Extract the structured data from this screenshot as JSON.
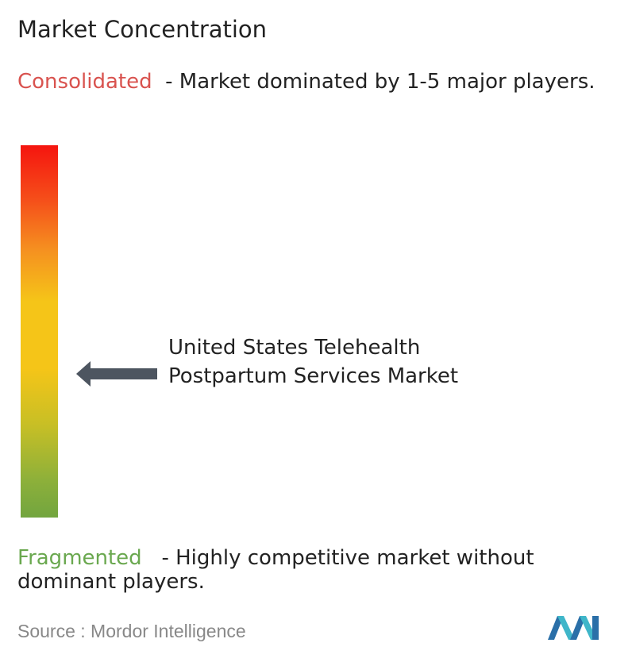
{
  "title": "Market Concentration",
  "consolidated": {
    "label": "Consolidated",
    "description": "- Market dominated by 1-5 major players."
  },
  "marker": {
    "label": "United States Telehealth Postpartum Services Market"
  },
  "fragmented": {
    "label": "Fragmented",
    "description": "- Highly competitive market without dominant players."
  },
  "source": {
    "label": "Source :",
    "name": "Mordor Intelligence"
  }
}
